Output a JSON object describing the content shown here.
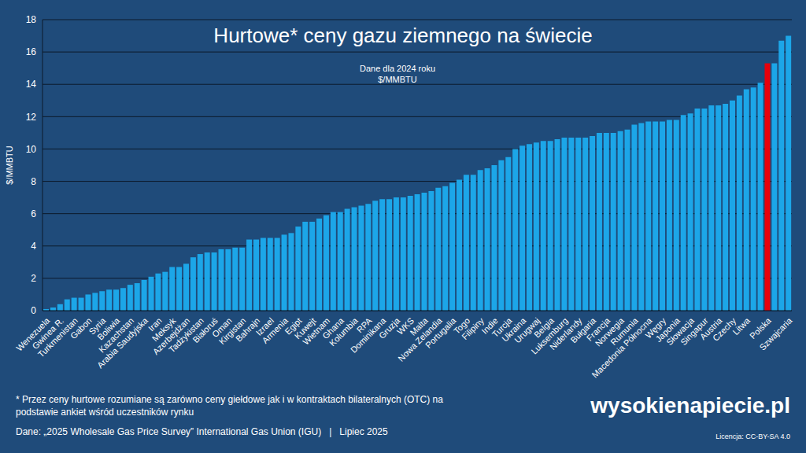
{
  "chart_data": {
    "type": "bar",
    "title": "Hurtowe* ceny gazu ziemnego na świecie",
    "annotations": [
      "Dane dla 2024 roku",
      "$/MMBTU"
    ],
    "y_label": "$/MMBTU",
    "categories": [
      "Wenezuela",
      null,
      "Gwinea R.",
      null,
      "Turkmenistan",
      null,
      "Gabon",
      null,
      "Syria",
      null,
      "Boliwia",
      null,
      "Kazachstan",
      null,
      "Arabia Saudyjska",
      null,
      "Iran",
      null,
      "Meksyk",
      null,
      "Azerbejdżan",
      null,
      "Tadżykistan",
      null,
      "Białoruś",
      null,
      "Oman",
      null,
      "Kirgistan",
      null,
      "Bahrajn",
      null,
      "Izrael",
      null,
      "Armenia",
      null,
      "Egipt",
      null,
      "Kuwejt",
      null,
      "Wietnam",
      null,
      "Ghana",
      null,
      "Kolumbia",
      null,
      "RPA",
      null,
      "Dominikana",
      null,
      "Gruzja",
      null,
      "WKS",
      null,
      "Malta",
      null,
      "Nowa Zelandia",
      null,
      "Portugalia",
      null,
      "Togo",
      null,
      "Filipiny",
      null,
      "Indie",
      null,
      "Turcja",
      null,
      "Ukraina",
      null,
      "Urugwaj",
      null,
      "Belgia",
      null,
      "Luksemburg",
      null,
      "Niderlandy",
      null,
      "Bułgaria",
      null,
      "Francja",
      null,
      "Norwegia",
      null,
      "Rumunia",
      null,
      "Macedonia Północna",
      null,
      "Węgry",
      null,
      "Japonia",
      null,
      "Słowacja",
      null,
      "Singapur",
      null,
      "Austria",
      null,
      "Czechy",
      null,
      "Litwa",
      null,
      null,
      "Polska",
      null,
      null,
      "Szwajcaria"
    ],
    "values": [
      0.1,
      0.2,
      0.4,
      0.7,
      0.8,
      0.8,
      1.0,
      1.1,
      1.2,
      1.3,
      1.3,
      1.4,
      1.6,
      1.7,
      1.9,
      2.1,
      2.3,
      2.4,
      2.7,
      2.7,
      2.9,
      3.3,
      3.5,
      3.6,
      3.6,
      3.8,
      3.8,
      3.9,
      3.9,
      4.4,
      4.4,
      4.5,
      4.5,
      4.5,
      4.7,
      4.8,
      5.2,
      5.5,
      5.5,
      5.7,
      5.9,
      6.1,
      6.1,
      6.3,
      6.4,
      6.5,
      6.6,
      6.8,
      6.9,
      6.9,
      7.0,
      7.0,
      7.1,
      7.2,
      7.3,
      7.4,
      7.6,
      7.7,
      7.9,
      8.1,
      8.4,
      8.4,
      8.7,
      8.8,
      9.0,
      9.3,
      9.5,
      10.0,
      10.2,
      10.3,
      10.4,
      10.5,
      10.5,
      10.6,
      10.7,
      10.7,
      10.7,
      10.7,
      10.8,
      11.0,
      11.0,
      11.0,
      11.1,
      11.2,
      11.5,
      11.6,
      11.7,
      11.7,
      11.7,
      11.8,
      11.8,
      12.1,
      12.2,
      12.5,
      12.5,
      12.7,
      12.7,
      12.8,
      13.0,
      13.3,
      13.7,
      13.8,
      14.1,
      15.3,
      15.3,
      16.7,
      17.0
    ],
    "colors": [
      "#1ca6e8",
      "#1ca6e8",
      "#1ca6e8",
      "#1ca6e8",
      "#1ca6e8",
      "#1ca6e8",
      "#1ca6e8",
      "#1ca6e8",
      "#1ca6e8",
      "#1ca6e8",
      "#1ca6e8",
      "#1ca6e8",
      "#1ca6e8",
      "#1ca6e8",
      "#1ca6e8",
      "#1ca6e8",
      "#1ca6e8",
      "#1ca6e8",
      "#1ca6e8",
      "#1ca6e8",
      "#1ca6e8",
      "#1ca6e8",
      "#1ca6e8",
      "#1ca6e8",
      "#1ca6e8",
      "#1ca6e8",
      "#1ca6e8",
      "#1ca6e8",
      "#1ca6e8",
      "#1ca6e8",
      "#1ca6e8",
      "#1ca6e8",
      "#1ca6e8",
      "#1ca6e8",
      "#1ca6e8",
      "#1ca6e8",
      "#1ca6e8",
      "#1ca6e8",
      "#1ca6e8",
      "#1ca6e8",
      "#1ca6e8",
      "#1ca6e8",
      "#1ca6e8",
      "#1ca6e8",
      "#1ca6e8",
      "#1ca6e8",
      "#1ca6e8",
      "#1ca6e8",
      "#1ca6e8",
      "#1ca6e8",
      "#1ca6e8",
      "#1ca6e8",
      "#1ca6e8",
      "#1ca6e8",
      "#1ca6e8",
      "#1ca6e8",
      "#1ca6e8",
      "#1ca6e8",
      "#1ca6e8",
      "#1ca6e8",
      "#1ca6e8",
      "#1ca6e8",
      "#1ca6e8",
      "#1ca6e8",
      "#1ca6e8",
      "#1ca6e8",
      "#1ca6e8",
      "#1ca6e8",
      "#1ca6e8",
      "#1ca6e8",
      "#1ca6e8",
      "#1ca6e8",
      "#1ca6e8",
      "#1ca6e8",
      "#1ca6e8",
      "#1ca6e8",
      "#1ca6e8",
      "#1ca6e8",
      "#1ca6e8",
      "#1ca6e8",
      "#1ca6e8",
      "#1ca6e8",
      "#1ca6e8",
      "#1ca6e8",
      "#1ca6e8",
      "#1ca6e8",
      "#1ca6e8",
      "#1ca6e8",
      "#1ca6e8",
      "#1ca6e8",
      "#1ca6e8",
      "#1ca6e8",
      "#1ca6e8",
      "#1ca6e8",
      "#1ca6e8",
      "#1ca6e8",
      "#1ca6e8",
      "#1ca6e8",
      "#1ca6e8",
      "#1ca6e8",
      "#1ca6e8",
      "#1ca6e8",
      "#1ca6e8",
      "#e8000b",
      "#1ca6e8",
      "#1ca6e8",
      "#1ca6e8"
    ],
    "ylim": [
      0,
      18
    ],
    "yticks": [
      0,
      2,
      4,
      6,
      8,
      10,
      12,
      14,
      16,
      18
    ],
    "grid": true,
    "notes": {
      "footnote": "* Przez ceny hurtowe rozumiane są zarówno ceny giełdowe jak i w kontraktach bilateralnych (OTC) na podstawie ankiet wśród uczestników rynku",
      "source": "Dane: „2025 Wholesale Gas Price Survey” International Gas Union (IGU)   |   Lipiec 2025",
      "brand": "wysokienapiecie.pl",
      "license": "Licencja: CC-BY-SA 4.0"
    }
  }
}
